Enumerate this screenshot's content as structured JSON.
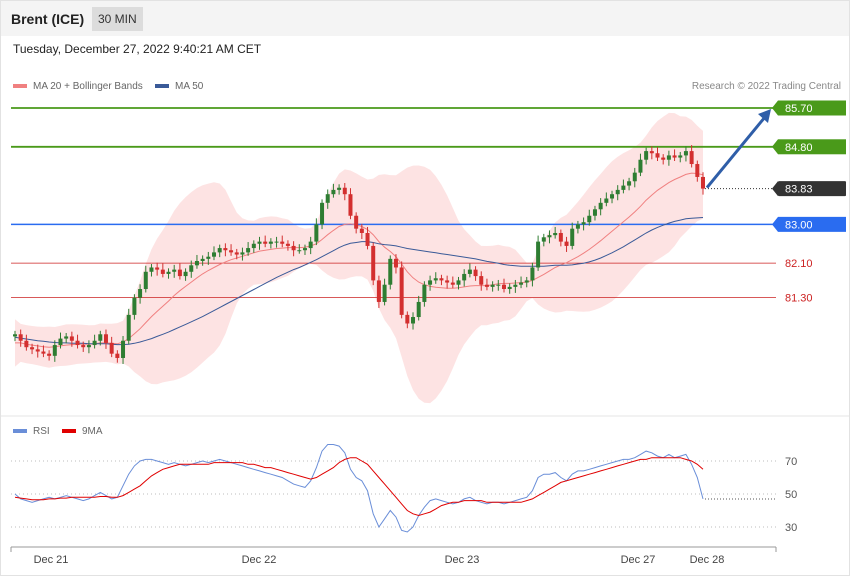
{
  "header": {
    "title": "Brent (ICE)",
    "timeframe": "30 MIN"
  },
  "timestamp": "Tuesday, December 27, 2022 9:40:21 AM CET",
  "legend": {
    "ma20": {
      "label": "MA 20 + Bollinger Bands",
      "color": "#f08080"
    },
    "ma50": {
      "label": "MA 50",
      "color": "#3a5a98"
    }
  },
  "credit": "Research © 2022 Trading Central",
  "rsi_legend": {
    "rsi": {
      "label": "RSI",
      "color": "#6a8ed8"
    },
    "ma9": {
      "label": "9MA",
      "color": "#e00000"
    }
  },
  "chart_data": [
    {
      "type": "candlestick",
      "x_ticks": [
        "Dec 21",
        "Dec 22",
        "Dec 23",
        "Dec 27",
        "Dec 28"
      ],
      "ylim": [
        79.2,
        86.2
      ],
      "grid": false,
      "price_levels": [
        {
          "label": "85.70",
          "value": 85.7,
          "kind": "resistance",
          "color": "#4a9a1a"
        },
        {
          "label": "84.80",
          "value": 84.8,
          "kind": "resistance",
          "color": "#4a9a1a"
        },
        {
          "label": "83.83",
          "value": 83.83,
          "kind": "last-price",
          "color": "#333333"
        },
        {
          "label": "83.00",
          "value": 83.0,
          "kind": "pivot",
          "color": "#2a6cf0"
        },
        {
          "label": "82.10",
          "value": 82.1,
          "kind": "support",
          "color": "#cc2222"
        },
        {
          "label": "81.30",
          "value": 81.3,
          "kind": "support",
          "color": "#cc2222"
        }
      ],
      "forecast_arrow": {
        "from": 83.83,
        "to": 85.7
      },
      "close_series": [
        80.45,
        80.3,
        80.15,
        80.1,
        80.05,
        80.0,
        79.95,
        80.2,
        80.35,
        80.4,
        80.3,
        80.2,
        80.15,
        80.2,
        80.3,
        80.45,
        80.25,
        80.0,
        79.9,
        80.3,
        80.9,
        81.3,
        81.5,
        81.9,
        82.0,
        81.95,
        81.85,
        81.9,
        81.95,
        81.8,
        81.9,
        82.05,
        82.15,
        82.2,
        82.25,
        82.35,
        82.45,
        82.4,
        82.35,
        82.3,
        82.35,
        82.45,
        82.55,
        82.6,
        82.55,
        82.6,
        82.6,
        82.55,
        82.5,
        82.4,
        82.4,
        82.45,
        82.6,
        83.0,
        83.5,
        83.7,
        83.8,
        83.85,
        83.7,
        83.2,
        82.9,
        82.8,
        82.5,
        81.7,
        81.2,
        81.6,
        82.2,
        82.0,
        80.9,
        80.7,
        80.85,
        81.2,
        81.6,
        81.7,
        81.75,
        81.7,
        81.65,
        81.6,
        81.7,
        81.85,
        81.95,
        81.8,
        81.6,
        81.55,
        81.6,
        81.6,
        81.5,
        81.55,
        81.6,
        81.65,
        81.7,
        82.0,
        82.6,
        82.7,
        82.75,
        82.8,
        82.6,
        82.5,
        82.9,
        83.0,
        83.05,
        83.2,
        83.35,
        83.5,
        83.6,
        83.7,
        83.8,
        83.9,
        84.0,
        84.2,
        84.5,
        84.7,
        84.65,
        84.55,
        84.5,
        84.6,
        84.55,
        84.6,
        84.7,
        84.4,
        84.1,
        83.83
      ],
      "ma20_series": [
        80.25,
        80.25,
        80.22,
        80.2,
        80.18,
        80.16,
        80.15,
        80.16,
        80.18,
        80.2,
        80.21,
        80.22,
        80.22,
        80.22,
        80.23,
        80.25,
        80.25,
        80.24,
        80.23,
        80.27,
        80.35,
        80.46,
        80.58,
        80.72,
        80.86,
        80.98,
        81.1,
        81.22,
        81.35,
        81.46,
        81.56,
        81.66,
        81.76,
        81.85,
        81.93,
        82.0,
        82.07,
        82.13,
        82.18,
        82.22,
        82.26,
        82.3,
        82.34,
        82.38,
        82.4,
        82.42,
        82.44,
        82.45,
        82.46,
        82.46,
        82.46,
        82.47,
        82.5,
        82.55,
        82.65,
        82.76,
        82.86,
        82.95,
        83.0,
        83.01,
        82.99,
        82.95,
        82.88,
        82.76,
        82.6,
        82.47,
        82.37,
        82.25,
        82.08,
        81.9,
        81.76,
        81.66,
        81.6,
        81.56,
        81.54,
        81.53,
        81.52,
        81.52,
        81.53,
        81.55,
        81.57,
        81.58,
        81.58,
        81.58,
        81.6,
        81.62,
        81.63,
        81.63,
        81.64,
        81.65,
        81.66,
        81.7,
        81.77,
        81.84,
        81.92,
        82.0,
        82.06,
        82.11,
        82.18,
        82.25,
        82.33,
        82.42,
        82.52,
        82.62,
        82.73,
        82.84,
        82.95,
        83.06,
        83.17,
        83.29,
        83.42,
        83.56,
        83.68,
        83.79,
        83.88,
        83.97,
        84.04,
        84.1,
        84.16,
        84.19,
        84.18,
        84.15
      ],
      "ma50_series": [
        80.38,
        80.36,
        80.34,
        80.32,
        80.3,
        80.29,
        80.27,
        80.26,
        80.25,
        80.25,
        80.24,
        80.24,
        80.24,
        80.23,
        80.23,
        80.23,
        80.23,
        80.22,
        80.21,
        80.21,
        80.22,
        80.24,
        80.27,
        80.31,
        80.35,
        80.4,
        80.45,
        80.5,
        80.56,
        80.62,
        80.68,
        80.74,
        80.8,
        80.86,
        80.93,
        81.0,
        81.07,
        81.14,
        81.21,
        81.28,
        81.35,
        81.42,
        81.49,
        81.56,
        81.63,
        81.7,
        81.77,
        81.83,
        81.89,
        81.95,
        82.0,
        82.06,
        82.12,
        82.18,
        82.25,
        82.32,
        82.39,
        82.46,
        82.52,
        82.56,
        82.58,
        82.6,
        82.6,
        82.58,
        82.55,
        82.53,
        82.52,
        82.5,
        82.47,
        82.44,
        82.42,
        82.4,
        82.38,
        82.36,
        82.34,
        82.32,
        82.3,
        82.28,
        82.26,
        82.24,
        82.22,
        82.2,
        82.17,
        82.14,
        82.12,
        82.1,
        82.07,
        82.05,
        82.04,
        82.03,
        82.03,
        82.03,
        82.03,
        82.03,
        82.04,
        82.05,
        82.05,
        82.05,
        82.06,
        82.08,
        82.1,
        82.13,
        82.17,
        82.22,
        82.28,
        82.34,
        82.41,
        82.48,
        82.56,
        82.64,
        82.72,
        82.8,
        82.87,
        82.93,
        82.98,
        83.03,
        83.07,
        83.1,
        83.13,
        83.14,
        83.15,
        83.16
      ]
    },
    {
      "type": "line",
      "ylim": [
        20,
        85
      ],
      "y_ticks": [
        "70",
        "50",
        "30"
      ],
      "series": [
        {
          "name": "RSI",
          "values": [
            50,
            47,
            46,
            45,
            46,
            47,
            48,
            47,
            48,
            49,
            48,
            47,
            46,
            47,
            49,
            51,
            49,
            47,
            48,
            55,
            62,
            67,
            70,
            71,
            71,
            70,
            69,
            68,
            69,
            68,
            67,
            68,
            69,
            70,
            69,
            70,
            71,
            70,
            69,
            68,
            67,
            66,
            65,
            64,
            63,
            62,
            61,
            60,
            58,
            56,
            55,
            54,
            58,
            66,
            76,
            80,
            80,
            79,
            75,
            65,
            60,
            58,
            52,
            38,
            30,
            35,
            40,
            36,
            28,
            27,
            30,
            37,
            42,
            46,
            47,
            46,
            45,
            44,
            45,
            47,
            48,
            46,
            45,
            44,
            45,
            45,
            44,
            45,
            46,
            47,
            48,
            52,
            60,
            62,
            62,
            63,
            60,
            58,
            62,
            64,
            64,
            65,
            66,
            67,
            68,
            69,
            70,
            71,
            71,
            72,
            74,
            76,
            75,
            73,
            72,
            74,
            72,
            73,
            74,
            68,
            60,
            47
          ]
        },
        {
          "name": "9MA",
          "values": [
            48,
            47.5,
            47,
            46.5,
            46.5,
            46.5,
            47,
            47,
            47.5,
            47.5,
            48,
            48,
            48,
            48,
            48,
            48.5,
            48.5,
            48,
            48,
            49,
            51,
            53,
            55,
            58,
            61,
            63,
            65,
            66,
            67,
            68,
            68,
            68,
            68,
            68,
            68,
            69,
            69,
            69,
            69,
            69,
            69,
            68,
            68,
            67,
            66,
            66,
            65,
            64,
            63,
            62,
            61,
            60,
            59,
            60,
            62,
            64,
            66,
            69,
            71,
            72,
            72,
            70,
            68,
            64,
            60,
            56,
            52,
            48,
            44,
            40,
            38,
            37,
            38,
            39,
            41,
            43,
            44,
            45,
            45,
            46,
            46,
            46,
            46,
            45,
            45,
            45,
            45,
            45,
            45,
            45,
            46,
            47,
            49,
            51,
            53,
            55,
            57,
            58,
            59,
            60,
            61,
            62,
            63,
            64,
            65,
            66,
            67,
            68,
            69,
            70,
            71,
            71,
            72,
            72,
            72,
            72,
            72,
            72,
            71,
            70,
            68,
            65
          ]
        }
      ]
    }
  ]
}
